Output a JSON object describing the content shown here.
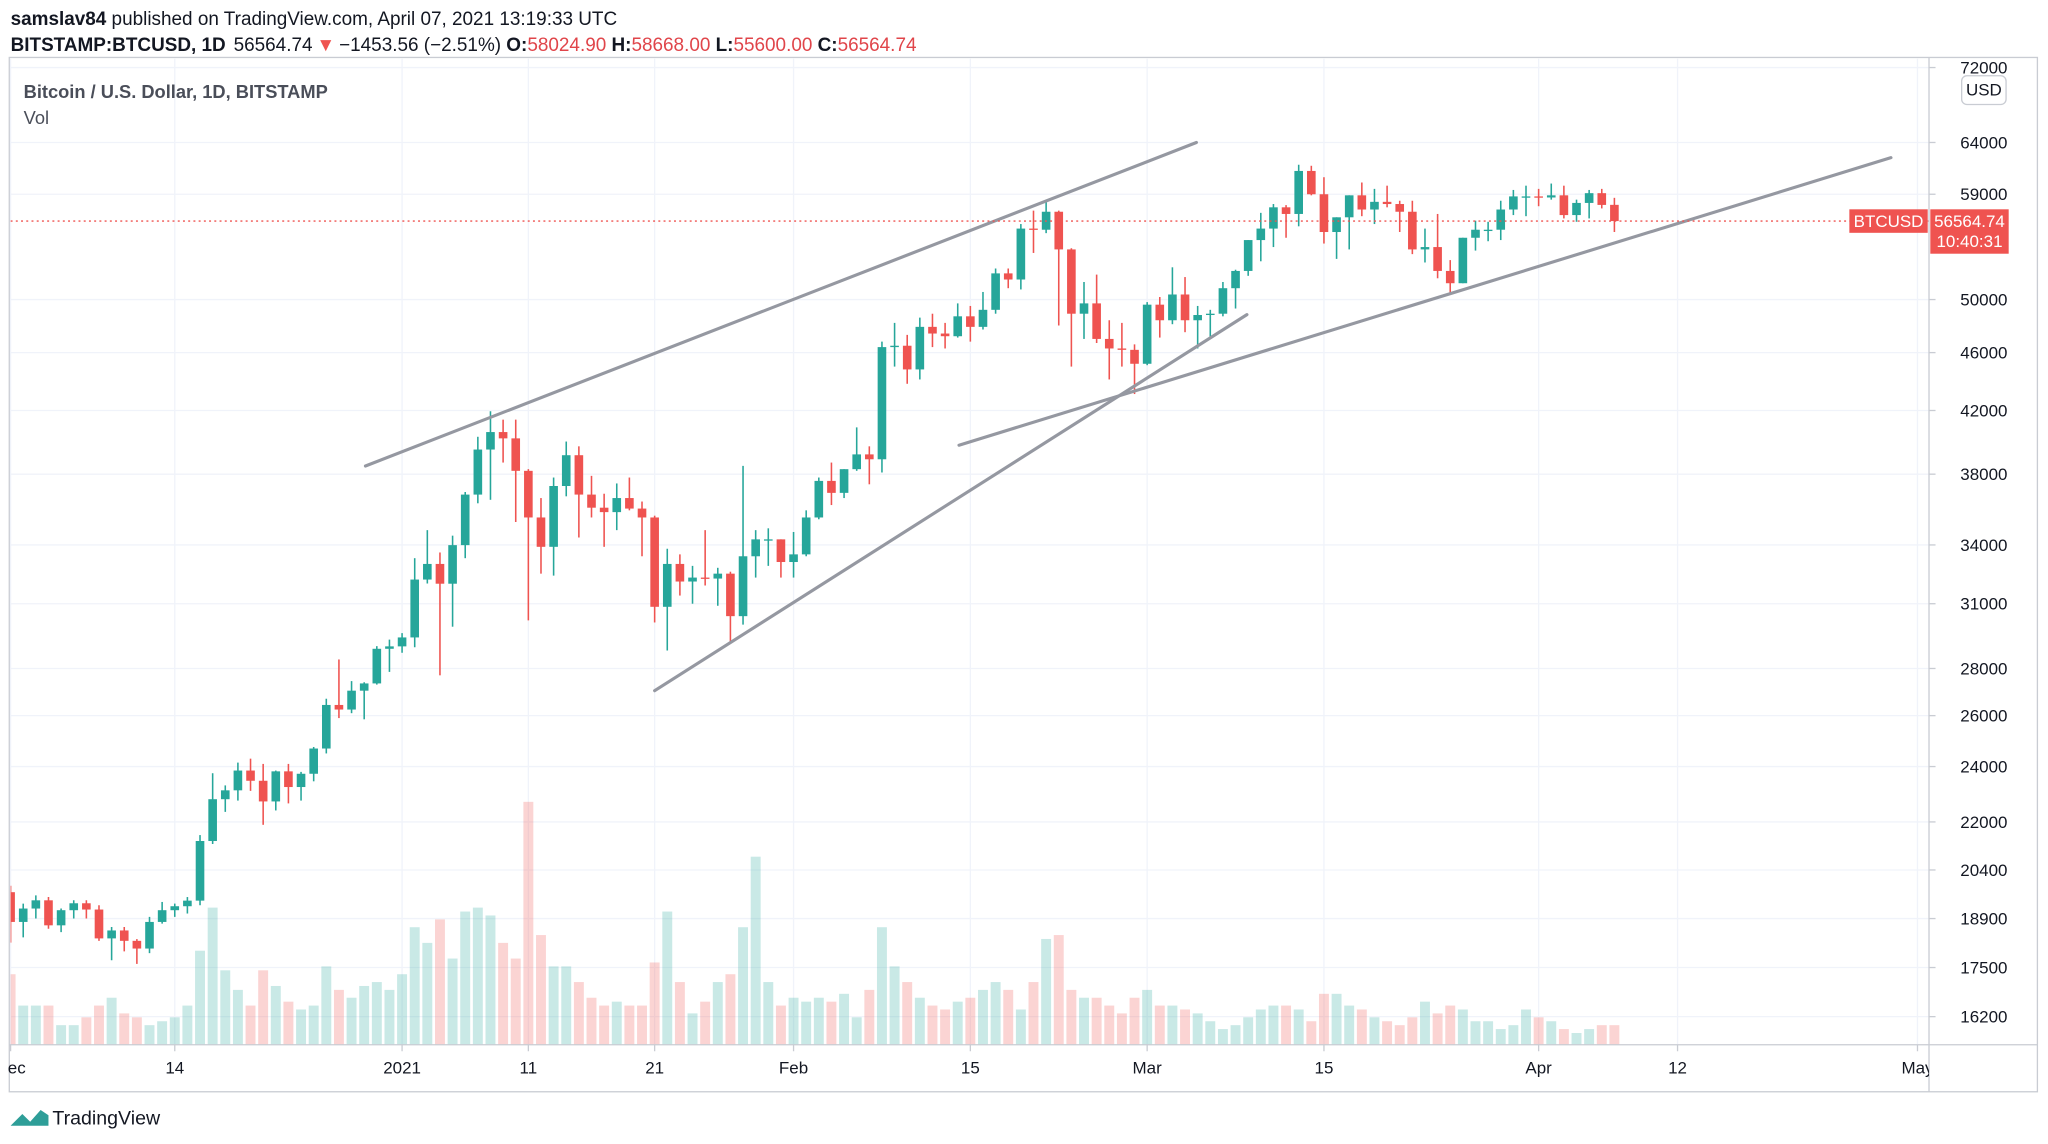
{
  "header": {
    "author": "samslav84",
    "published": "published on TradingView.com, April 07, 2021 13:19:33 UTC",
    "symbol": "BITSTAMP:BTCUSD, 1D",
    "last": "56564.74",
    "arrow": "▼",
    "change": "−1453.56 (−2.51%)",
    "o_label": "O:",
    "o": "58024.90",
    "h_label": "H:",
    "h": "58668.00",
    "l_label": "L:",
    "l": "55600.00",
    "c_label": "C:",
    "c": "56564.74"
  },
  "legend": {
    "title": "Bitcoin / U.S. Dollar, 1D, BITSTAMP",
    "volume": "Vol"
  },
  "currency_button": "USD",
  "footer": "TradingView",
  "chart_data": {
    "type": "candlestick",
    "up_color": "#26a69a",
    "down_color": "#ef5350",
    "log_scale": true,
    "grid": true,
    "price_label": "BTCUSD",
    "countdown": "10:40:31",
    "ylim": [
      15500,
      73000
    ],
    "yticks": [
      16200,
      17500,
      18900,
      20400,
      22000,
      24000,
      26000,
      28000,
      31000,
      34000,
      38000,
      42000,
      46000,
      50000,
      59000,
      64000,
      72000
    ],
    "xlim": [
      0,
      152
    ],
    "xticks": [
      {
        "value": 0,
        "label": "Dec"
      },
      {
        "value": 13,
        "label": "14"
      },
      {
        "value": 31,
        "label": "2021"
      },
      {
        "value": 41,
        "label": "11"
      },
      {
        "value": 51,
        "label": "21"
      },
      {
        "value": 62,
        "label": "Feb"
      },
      {
        "value": 76,
        "label": "15"
      },
      {
        "value": 90,
        "label": "Mar"
      },
      {
        "value": 104,
        "label": "15"
      },
      {
        "value": 121,
        "label": "Apr"
      },
      {
        "value": 132,
        "label": "12"
      },
      {
        "value": 151,
        "label": "May"
      }
    ],
    "vlim": [
      0,
      40000
    ],
    "trendlines": [
      {
        "x": [
          28.1,
          93.9
        ],
        "y": [
          38490,
          64000
        ]
      },
      {
        "x": [
          51.0,
          97.9
        ],
        "y": [
          27040,
          48830
        ]
      },
      {
        "x": [
          75.1,
          148.9
        ],
        "y": [
          39770,
          62490
        ]
      }
    ],
    "ohlc": [
      [
        19700,
        19900,
        18200,
        18800
      ],
      [
        18800,
        19350,
        18350,
        19200
      ],
      [
        19200,
        19600,
        18900,
        19450
      ],
      [
        19450,
        19550,
        18600,
        18700
      ],
      [
        18700,
        19200,
        18500,
        19150
      ],
      [
        19150,
        19450,
        18900,
        19360
      ],
      [
        19360,
        19450,
        18900,
        19170
      ],
      [
        19170,
        19300,
        18250,
        18320
      ],
      [
        18320,
        18650,
        17700,
        18550
      ],
      [
        18550,
        18650,
        17950,
        18250
      ],
      [
        18250,
        18300,
        17600,
        18030
      ],
      [
        18030,
        18950,
        17900,
        18800
      ],
      [
        18800,
        19400,
        18750,
        19150
      ],
      [
        19150,
        19350,
        18950,
        19270
      ],
      [
        19270,
        19550,
        19050,
        19440
      ],
      [
        19440,
        21550,
        19300,
        21350
      ],
      [
        21350,
        23750,
        21250,
        22800
      ],
      [
        22800,
        23300,
        22350,
        23120
      ],
      [
        23120,
        24150,
        22750,
        23850
      ],
      [
        23850,
        24300,
        23100,
        23470
      ],
      [
        23470,
        24100,
        21900,
        22720
      ],
      [
        22720,
        23850,
        22400,
        23820
      ],
      [
        23820,
        24100,
        22650,
        23240
      ],
      [
        23240,
        23800,
        22750,
        23730
      ],
      [
        23730,
        24750,
        23450,
        24690
      ],
      [
        24690,
        26700,
        24500,
        26440
      ],
      [
        26440,
        28400,
        25900,
        26250
      ],
      [
        26250,
        27450,
        26100,
        27040
      ],
      [
        27040,
        27400,
        25850,
        27350
      ],
      [
        27350,
        29000,
        27300,
        28880
      ],
      [
        28880,
        29300,
        27850,
        28990
      ],
      [
        28990,
        29600,
        28700,
        29400
      ],
      [
        29400,
        33300,
        28950,
        32200
      ],
      [
        32200,
        34800,
        32000,
        33000
      ],
      [
        33000,
        33600,
        27700,
        31990
      ],
      [
        31990,
        34500,
        29900,
        33990
      ],
      [
        33990,
        36950,
        33300,
        36800
      ],
      [
        36800,
        40300,
        36300,
        39500
      ],
      [
        39500,
        41950,
        36500,
        40600
      ],
      [
        40600,
        41400,
        38700,
        40200
      ],
      [
        40200,
        41400,
        35250,
        38200
      ],
      [
        38200,
        38300,
        30200,
        35500
      ],
      [
        35500,
        36600,
        32500,
        33900
      ],
      [
        33900,
        37800,
        32400,
        37300
      ],
      [
        37300,
        40000,
        36700,
        39150
      ],
      [
        39150,
        39700,
        34400,
        36800
      ],
      [
        36800,
        37900,
        35500,
        36050
      ],
      [
        36050,
        36850,
        33900,
        35800
      ],
      [
        35800,
        37450,
        34800,
        36600
      ],
      [
        36600,
        37800,
        35900,
        36000
      ],
      [
        36000,
        36400,
        33400,
        35500
      ],
      [
        35500,
        35600,
        30100,
        30850
      ],
      [
        30850,
        33800,
        28800,
        33000
      ],
      [
        33000,
        33500,
        31400,
        32100
      ],
      [
        32100,
        32900,
        31000,
        32300
      ],
      [
        32300,
        34800,
        31900,
        32250
      ],
      [
        32250,
        32800,
        30900,
        32500
      ],
      [
        32500,
        32600,
        29200,
        30400
      ],
      [
        30400,
        38500,
        30000,
        33400
      ],
      [
        33400,
        34800,
        32300,
        34300
      ],
      [
        34300,
        34900,
        32900,
        34300
      ],
      [
        34300,
        34300,
        32300,
        33100
      ],
      [
        33100,
        34700,
        32300,
        33500
      ],
      [
        33500,
        35900,
        33400,
        35500
      ],
      [
        35500,
        37800,
        35400,
        37600
      ],
      [
        37600,
        38700,
        36200,
        36900
      ],
      [
        36900,
        38300,
        36600,
        38300
      ],
      [
        38300,
        40900,
        38200,
        39200
      ],
      [
        39200,
        39700,
        37400,
        38900
      ],
      [
        38900,
        46800,
        38100,
        46400
      ],
      [
        46400,
        48200,
        45000,
        46500
      ],
      [
        46500,
        47300,
        43800,
        44800
      ],
      [
        44800,
        48600,
        44100,
        47900
      ],
      [
        47900,
        48900,
        46400,
        47400
      ],
      [
        47400,
        48200,
        46300,
        47200
      ],
      [
        47200,
        49700,
        47100,
        48700
      ],
      [
        48700,
        49500,
        46800,
        47900
      ],
      [
        47900,
        50600,
        47700,
        49200
      ],
      [
        49200,
        52500,
        48900,
        52100
      ],
      [
        52100,
        52500,
        50900,
        51600
      ],
      [
        51600,
        56300,
        50800,
        55900
      ],
      [
        55900,
        57500,
        53800,
        55800
      ],
      [
        55800,
        58300,
        55500,
        57400
      ],
      [
        57400,
        57500,
        48000,
        54100
      ],
      [
        54100,
        54200,
        45000,
        48900
      ],
      [
        48900,
        51400,
        47000,
        49700
      ],
      [
        49700,
        52000,
        46700,
        47000
      ],
      [
        47000,
        48400,
        44100,
        46300
      ],
      [
        46300,
        48200,
        45000,
        46200
      ],
      [
        46200,
        46600,
        43100,
        45200
      ],
      [
        45200,
        49800,
        45100,
        49600
      ],
      [
        49600,
        50200,
        47100,
        48400
      ],
      [
        48400,
        52600,
        48100,
        50400
      ],
      [
        50400,
        51800,
        47500,
        48400
      ],
      [
        48400,
        49500,
        46300,
        48800
      ],
      [
        48800,
        49200,
        47100,
        48900
      ],
      [
        48900,
        51400,
        48700,
        50900
      ],
      [
        50900,
        52400,
        49300,
        52300
      ],
      [
        52300,
        54900,
        51900,
        54900
      ],
      [
        54900,
        57300,
        53100,
        55900
      ],
      [
        55900,
        58100,
        54300,
        57800
      ],
      [
        57800,
        58000,
        55100,
        57200
      ],
      [
        57200,
        61800,
        56100,
        61200
      ],
      [
        61200,
        61700,
        58900,
        59000
      ],
      [
        59000,
        60600,
        54600,
        55600
      ],
      [
        55600,
        56900,
        53300,
        56900
      ],
      [
        56900,
        58900,
        54100,
        58900
      ],
      [
        58900,
        60100,
        57000,
        57600
      ],
      [
        57600,
        59500,
        56300,
        58300
      ],
      [
        58300,
        59800,
        57800,
        58100
      ],
      [
        58100,
        58400,
        55600,
        57400
      ],
      [
        57400,
        58400,
        53700,
        54100
      ],
      [
        54100,
        55900,
        53000,
        54300
      ],
      [
        54300,
        57200,
        51700,
        52300
      ],
      [
        52300,
        53200,
        50400,
        51300
      ],
      [
        51300,
        55100,
        51300,
        55100
      ],
      [
        55100,
        56600,
        54000,
        55800
      ],
      [
        55800,
        56500,
        54800,
        55800
      ],
      [
        55800,
        58400,
        54900,
        57600
      ],
      [
        57600,
        59400,
        57100,
        58800
      ],
      [
        58800,
        59800,
        57000,
        58800
      ],
      [
        58800,
        59500,
        57900,
        58700
      ],
      [
        58700,
        60000,
        58500,
        58900
      ],
      [
        58900,
        59800,
        56800,
        57100
      ],
      [
        57100,
        58500,
        56500,
        58200
      ],
      [
        58200,
        59400,
        56800,
        59100
      ],
      [
        59100,
        59500,
        57700,
        58018.3
      ],
      [
        58024.9,
        58668,
        55600,
        56564.74
      ]
    ],
    "volume": [
      9000,
      5000,
      5000,
      5000,
      2500,
      2500,
      3500,
      5000,
      6000,
      4000,
      3500,
      2500,
      3000,
      3500,
      5000,
      12000,
      17500,
      9500,
      7000,
      5000,
      9500,
      7500,
      5500,
      4500,
      5000,
      10000,
      7000,
      6000,
      7500,
      8000,
      7000,
      9000,
      15000,
      13000,
      16000,
      11000,
      17000,
      17500,
      16500,
      13000,
      11000,
      31000,
      14000,
      10000,
      10000,
      8000,
      6000,
      5000,
      5500,
      5000,
      5000,
      10500,
      17000,
      8000,
      4000,
      5500,
      8000,
      9000,
      15000,
      24000,
      8000,
      5000,
      6000,
      5500,
      6000,
      5500,
      6500,
      3500,
      7000,
      15000,
      10000,
      8000,
      6000,
      5000,
      4500,
      5500,
      6000,
      7000,
      8000,
      7000,
      4500,
      8000,
      13500,
      14000,
      7000,
      6000,
      6000,
      5000,
      4000,
      6000,
      7000,
      5000,
      5000,
      4500,
      4000,
      3000,
      2000,
      2500,
      3500,
      4500,
      5000,
      5000,
      4500,
      3000,
      6500,
      6500,
      5000,
      4500,
      3500,
      3000,
      2500,
      3500,
      5500,
      4000,
      5000,
      4500,
      3000,
      3000,
      2000,
      2500,
      4500,
      3500,
      3000,
      2000,
      1500,
      2000,
      2500,
      2500
    ]
  }
}
